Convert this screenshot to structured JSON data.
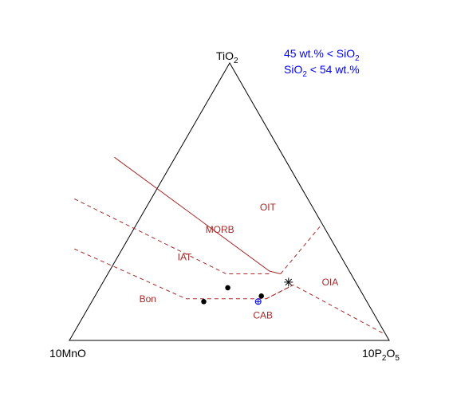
{
  "chart_data": {
    "type": "scatter",
    "subtype": "ternary",
    "title": "",
    "apices": {
      "top": {
        "base": "TiO",
        "sub": "2",
        "tail": ""
      },
      "left": {
        "base": "10MnO",
        "sub": "",
        "tail": ""
      },
      "right": {
        "base": "10P",
        "sub": "2",
        "tail": "O",
        "sub2": "5"
      }
    },
    "condition": {
      "line1": {
        "a": "45 wt.% < SiO",
        "sub": "2",
        "b": ""
      },
      "line2": {
        "a": "SiO",
        "sub": "2",
        "b": " < 54 wt.%"
      },
      "color": "#0000ff"
    },
    "field_color": "#a52a2a",
    "fields": [
      {
        "label": "OIT",
        "tmn": 0.14,
        "ttio": 0.48
      },
      {
        "label": "MORB",
        "tmn": 0.33,
        "ttio": 0.4
      },
      {
        "label": "IAT",
        "tmn": 0.49,
        "ttio": 0.3
      },
      {
        "label": "OIA",
        "tmn": 0.08,
        "ttio": 0.21
      },
      {
        "label": "Bon",
        "tmn": 0.68,
        "ttio": 0.15
      },
      {
        "label": "CAB",
        "tmn": 0.35,
        "ttio": 0.09
      }
    ],
    "boundaries": [
      {
        "style": "solid",
        "points": [
          [
            0.53,
            0.66
          ],
          [
            0.25,
            0.25
          ],
          [
            0.22,
            0.24
          ]
        ]
      },
      {
        "style": "dashed",
        "points": [
          [
            0.73,
            0.51
          ],
          [
            0.39,
            0.24
          ],
          [
            0.25,
            0.24
          ]
        ]
      },
      {
        "style": "dashed",
        "points": [
          [
            0.22,
            0.24
          ],
          [
            0.0,
            0.42
          ]
        ]
      },
      {
        "style": "dashed",
        "points": [
          [
            0.82,
            0.33
          ],
          [
            0.56,
            0.15
          ],
          [
            0.31,
            0.15
          ],
          [
            0.2,
            0.2
          ],
          [
            0.0,
            0.02
          ]
        ]
      },
      {
        "style": "dashed",
        "points": [
          [
            0.31,
            0.15
          ],
          [
            0.2,
            0.2
          ]
        ]
      }
    ],
    "points": [
      {
        "marker": "dot",
        "tmn": 0.51,
        "ttio": 0.14
      },
      {
        "marker": "dot",
        "tmn": 0.41,
        "ttio": 0.19
      },
      {
        "marker": "dot",
        "tmn": 0.32,
        "ttio": 0.16
      },
      {
        "marker": "asterisk",
        "tmn": 0.21,
        "ttio": 0.21
      },
      {
        "marker": "plus-circle",
        "tmn": 0.34,
        "ttio": 0.14,
        "color": "#0000ff"
      }
    ]
  }
}
